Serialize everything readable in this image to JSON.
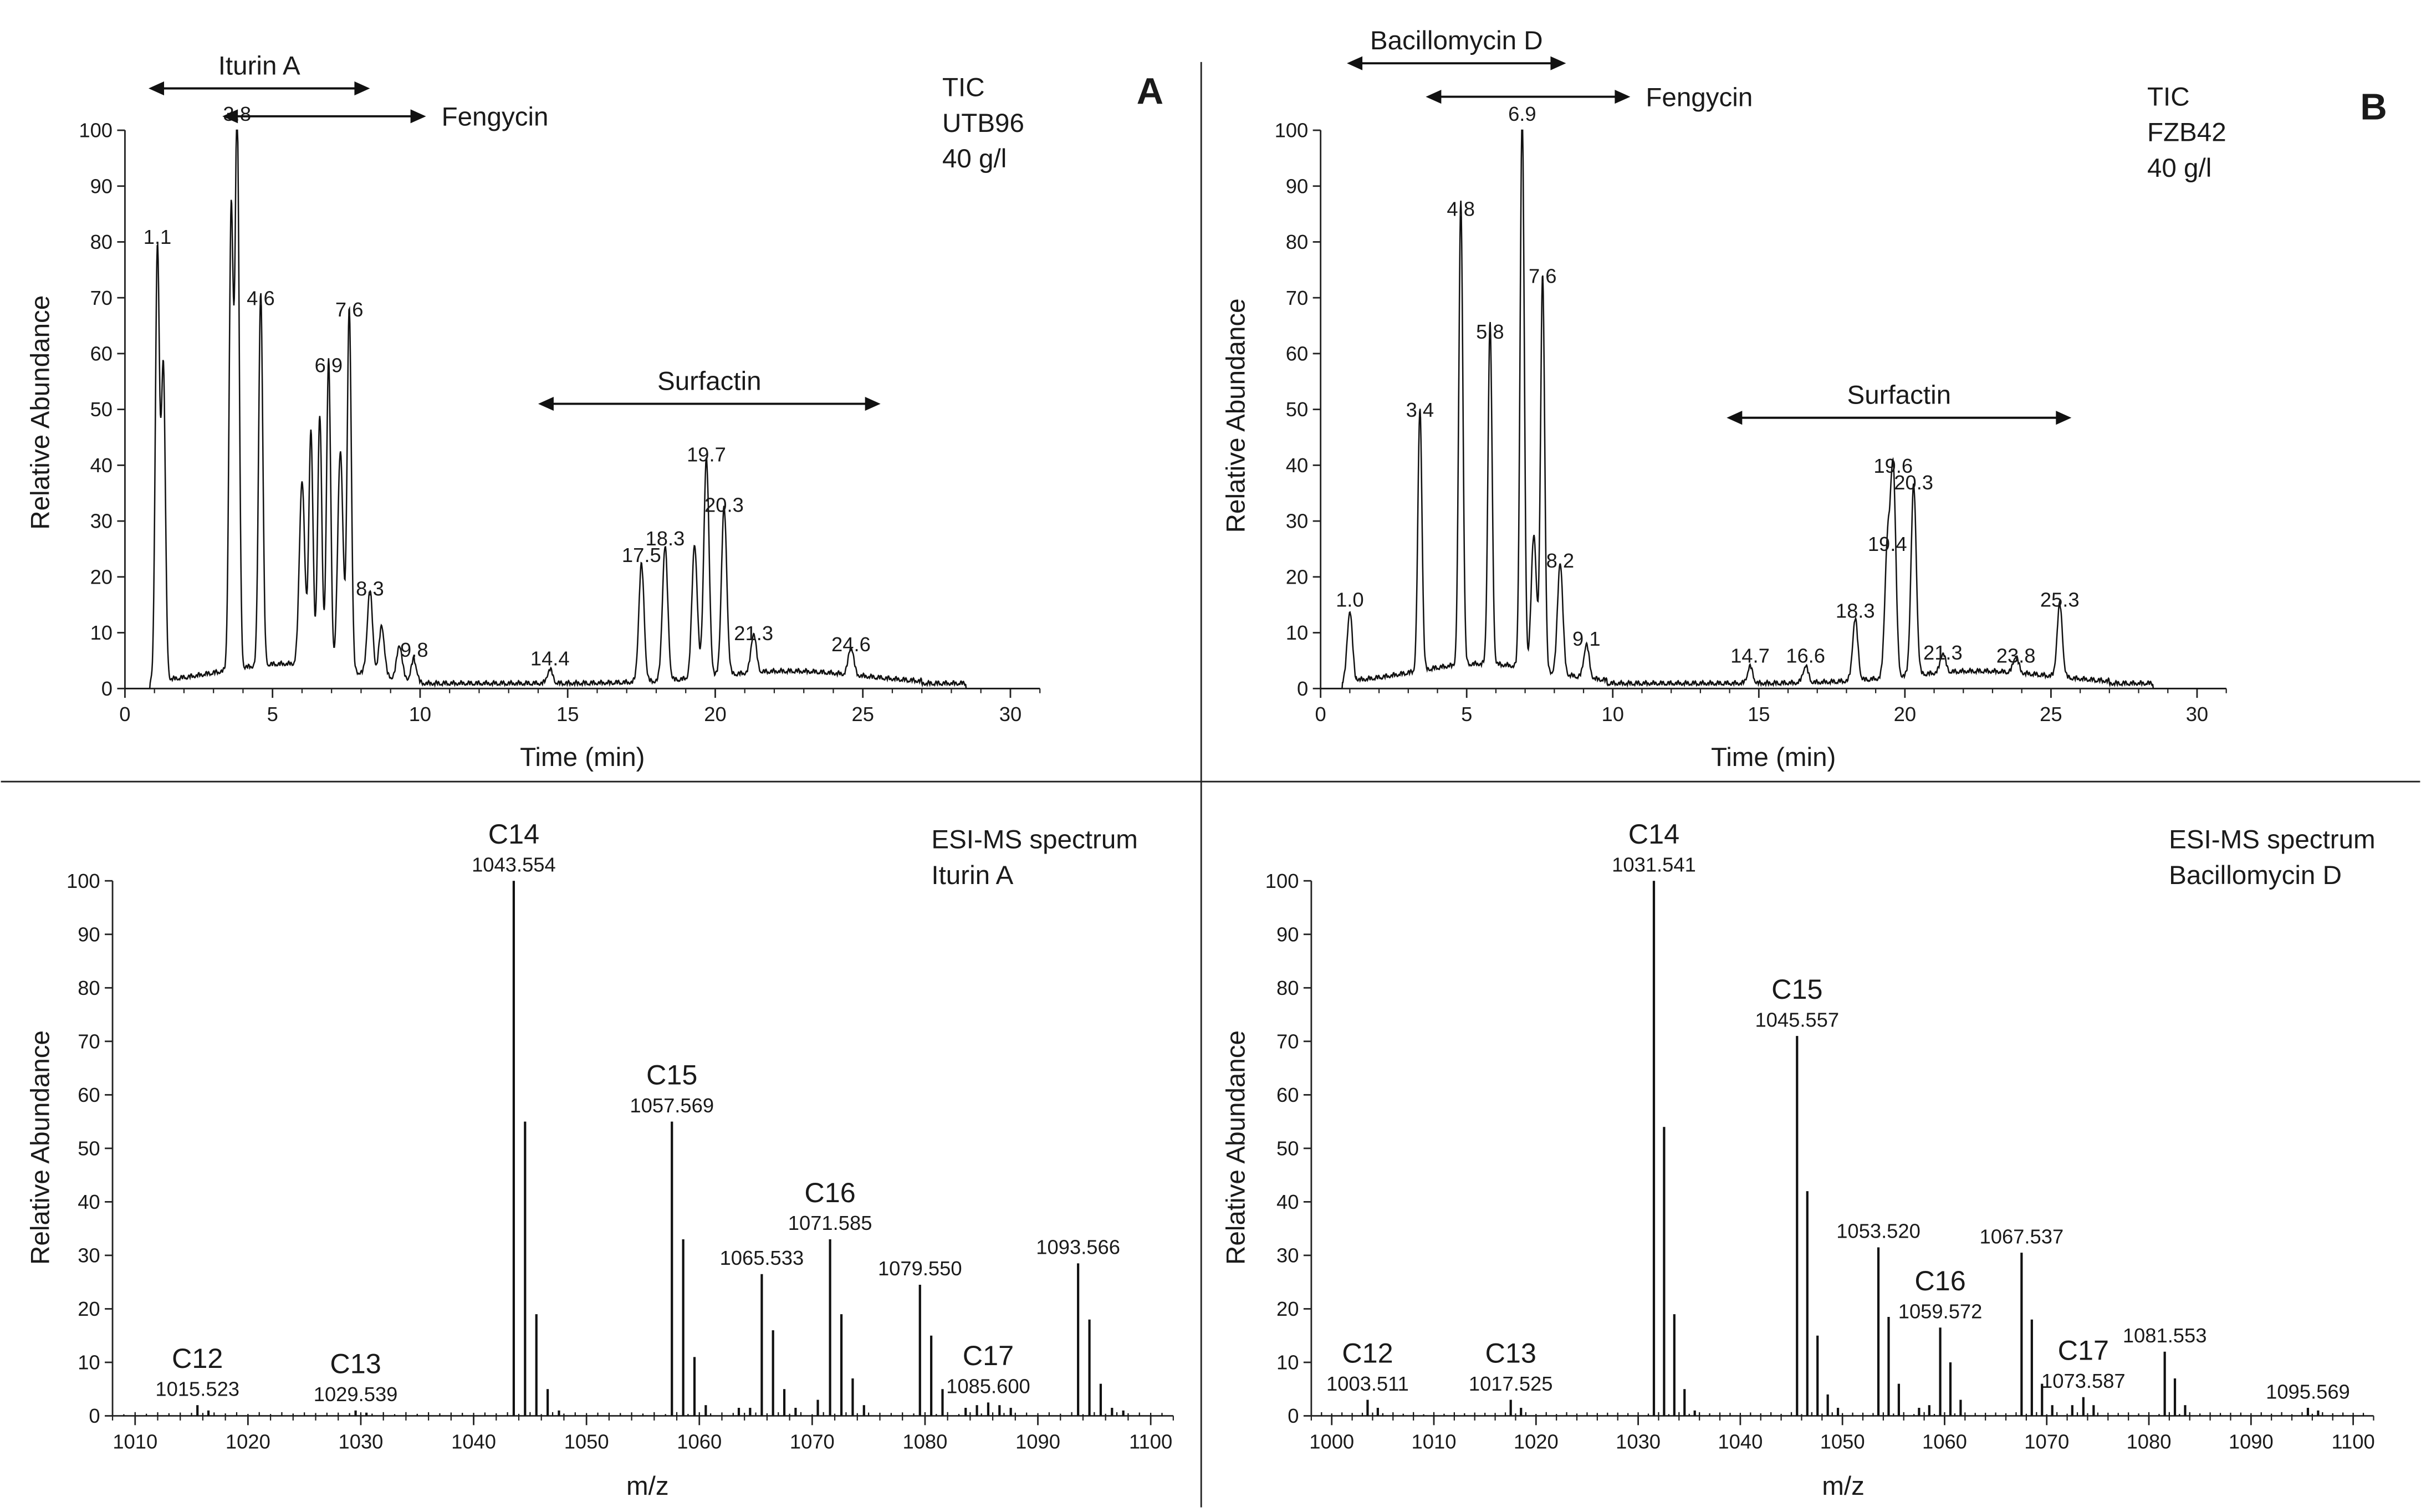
{
  "chart_data": [
    {
      "id": "A",
      "type": "line",
      "panel_letter": "A",
      "xlabel": "Time (min)",
      "ylabel": "Relative Abundance",
      "xlim": [
        0,
        31
      ],
      "ylim": [
        0,
        100
      ],
      "xticks": [
        0,
        5,
        10,
        15,
        20,
        25,
        30
      ],
      "yticks": [
        0,
        10,
        20,
        30,
        40,
        50,
        60,
        70,
        80,
        90,
        100
      ],
      "info_lines": [
        "TIC",
        "UTB96",
        "40 g/l"
      ],
      "ranges": [
        {
          "label": "Iturin A",
          "x1": 0.8,
          "x2": 8.3,
          "y": 107.5,
          "label_side": "above"
        },
        {
          "label": "Fengycin",
          "x1": 3.3,
          "x2": 10.2,
          "y": 102.5,
          "label_side": "right"
        },
        {
          "label": "Surfactin",
          "x1": 14.0,
          "x2": 25.6,
          "y": 51,
          "label_side": "above"
        }
      ],
      "peaks": [
        {
          "x": 1.1,
          "y": 78,
          "label": "1.1"
        },
        {
          "x": 1.3,
          "y": 56
        },
        {
          "x": 3.6,
          "y": 82
        },
        {
          "x": 3.8,
          "y": 100,
          "label": "3.8"
        },
        {
          "x": 4.6,
          "y": 67,
          "label": "4.6"
        },
        {
          "x": 6.0,
          "y": 33
        },
        {
          "x": 6.3,
          "y": 42
        },
        {
          "x": 6.6,
          "y": 45
        },
        {
          "x": 6.9,
          "y": 55,
          "label": "6.9"
        },
        {
          "x": 7.3,
          "y": 39
        },
        {
          "x": 7.6,
          "y": 65,
          "label": "7.6"
        },
        {
          "x": 8.3,
          "y": 15,
          "label": "8.3"
        },
        {
          "x": 8.7,
          "y": 9
        },
        {
          "x": 9.3,
          "y": 6
        },
        {
          "x": 9.8,
          "y": 4,
          "label": "9.8"
        },
        {
          "x": 14.4,
          "y": 2.5,
          "label": "14.4"
        },
        {
          "x": 17.5,
          "y": 21,
          "label": "17.5"
        },
        {
          "x": 18.3,
          "y": 24,
          "label": "18.3"
        },
        {
          "x": 19.3,
          "y": 24
        },
        {
          "x": 19.7,
          "y": 39,
          "label": "19.7"
        },
        {
          "x": 20.3,
          "y": 30,
          "label": "20.3"
        },
        {
          "x": 21.3,
          "y": 7,
          "label": "21.3"
        },
        {
          "x": 24.6,
          "y": 5,
          "label": "24.6"
        }
      ]
    },
    {
      "id": "B",
      "type": "line",
      "panel_letter": "B",
      "xlabel": "Time (min)",
      "ylabel": "Relative Abundance",
      "xlim": [
        0,
        31
      ],
      "ylim": [
        0,
        100
      ],
      "xticks": [
        0,
        5,
        10,
        15,
        20,
        25,
        30
      ],
      "yticks": [
        0,
        10,
        20,
        30,
        40,
        50,
        60,
        70,
        80,
        90,
        100
      ],
      "info_lines": [
        "TIC",
        "FZB42",
        "40 g/l"
      ],
      "ranges": [
        {
          "label": "Bacillomycin D",
          "x1": 0.9,
          "x2": 8.4,
          "y": 112,
          "label_side": "above"
        },
        {
          "label": "Fengycin",
          "x1": 3.6,
          "x2": 10.6,
          "y": 106,
          "label_side": "right"
        },
        {
          "label": "Surfactin",
          "x1": 13.9,
          "x2": 25.7,
          "y": 48.5,
          "label_side": "above"
        }
      ],
      "peaks": [
        {
          "x": 1.0,
          "y": 13,
          "label": "1.0"
        },
        {
          "x": 3.4,
          "y": 47,
          "label": "3.4"
        },
        {
          "x": 4.8,
          "y": 83,
          "label": "4.8"
        },
        {
          "x": 5.8,
          "y": 61,
          "label": "5.8"
        },
        {
          "x": 6.9,
          "y": 100,
          "label": "6.9"
        },
        {
          "x": 7.3,
          "y": 24
        },
        {
          "x": 7.6,
          "y": 71,
          "label": "7.6"
        },
        {
          "x": 8.2,
          "y": 20,
          "label": "8.2"
        },
        {
          "x": 9.1,
          "y": 6,
          "label": "9.1"
        },
        {
          "x": 14.7,
          "y": 3,
          "label": "14.7"
        },
        {
          "x": 16.6,
          "y": 3,
          "label": "16.6"
        },
        {
          "x": 18.3,
          "y": 11,
          "label": "18.3"
        },
        {
          "x": 19.4,
          "y": 23,
          "label": "19.4"
        },
        {
          "x": 19.6,
          "y": 37,
          "label": "19.6"
        },
        {
          "x": 20.3,
          "y": 34,
          "label": "20.3"
        },
        {
          "x": 21.3,
          "y": 3.5,
          "label": "21.3"
        },
        {
          "x": 23.8,
          "y": 3,
          "label": "23.8"
        },
        {
          "x": 25.3,
          "y": 13,
          "label": "25.3"
        }
      ]
    },
    {
      "id": "C",
      "type": "bar",
      "xlabel": "m/z",
      "ylabel": "Relative Abundance",
      "xlim": [
        1008,
        1102
      ],
      "ylim": [
        0,
        100
      ],
      "xticks": [
        1010,
        1020,
        1030,
        1040,
        1050,
        1060,
        1070,
        1080,
        1090,
        1100
      ],
      "yticks": [
        0,
        10,
        20,
        30,
        40,
        50,
        60,
        70,
        80,
        90,
        100
      ],
      "info_lines": [
        "ESI-MS spectrum",
        "Iturin A"
      ],
      "series": [
        {
          "x": 1015.523,
          "y": 2,
          "label": "1015.523",
          "group": "C12"
        },
        {
          "x": 1016.5,
          "y": 1
        },
        {
          "x": 1029.539,
          "y": 1,
          "label": "1029.539",
          "group": "C13"
        },
        {
          "x": 1030.5,
          "y": 0.6
        },
        {
          "x": 1043.554,
          "y": 100,
          "label": "1043.554",
          "group": "C14"
        },
        {
          "x": 1044.556,
          "y": 55
        },
        {
          "x": 1045.56,
          "y": 19
        },
        {
          "x": 1046.56,
          "y": 5
        },
        {
          "x": 1047.56,
          "y": 1
        },
        {
          "x": 1057.569,
          "y": 55,
          "label": "1057.569",
          "group": "C15"
        },
        {
          "x": 1058.57,
          "y": 33
        },
        {
          "x": 1059.57,
          "y": 11
        },
        {
          "x": 1060.57,
          "y": 2
        },
        {
          "x": 1063.5,
          "y": 1.5
        },
        {
          "x": 1064.5,
          "y": 1.5
        },
        {
          "x": 1065.533,
          "y": 26.5,
          "label": "1065.533"
        },
        {
          "x": 1066.53,
          "y": 16
        },
        {
          "x": 1067.53,
          "y": 5
        },
        {
          "x": 1068.53,
          "y": 1.5
        },
        {
          "x": 1070.5,
          "y": 3
        },
        {
          "x": 1071.585,
          "y": 33,
          "label": "1071.585",
          "group": "C16"
        },
        {
          "x": 1072.59,
          "y": 19
        },
        {
          "x": 1073.59,
          "y": 7
        },
        {
          "x": 1074.59,
          "y": 2
        },
        {
          "x": 1079.55,
          "y": 24.5,
          "label": "1079.550"
        },
        {
          "x": 1080.55,
          "y": 15
        },
        {
          "x": 1081.55,
          "y": 5
        },
        {
          "x": 1083.6,
          "y": 1.5
        },
        {
          "x": 1084.6,
          "y": 2
        },
        {
          "x": 1085.6,
          "y": 2.5,
          "label": "1085.600",
          "group": "C17"
        },
        {
          "x": 1086.6,
          "y": 2
        },
        {
          "x": 1087.6,
          "y": 1.5
        },
        {
          "x": 1093.566,
          "y": 28.5,
          "label": "1093.566"
        },
        {
          "x": 1094.57,
          "y": 18
        },
        {
          "x": 1095.57,
          "y": 6
        },
        {
          "x": 1096.57,
          "y": 1.5
        },
        {
          "x": 1097.57,
          "y": 1
        }
      ],
      "group_labels": [
        "C12",
        "C13",
        "C14",
        "C15",
        "C16",
        "C17"
      ]
    },
    {
      "id": "D",
      "type": "bar",
      "xlabel": "m/z",
      "ylabel": "Relative Abundance",
      "xlim": [
        998,
        1102
      ],
      "ylim": [
        0,
        100
      ],
      "xticks": [
        1000,
        1010,
        1020,
        1030,
        1040,
        1050,
        1060,
        1070,
        1080,
        1090,
        1100
      ],
      "yticks": [
        0,
        10,
        20,
        30,
        40,
        50,
        60,
        70,
        80,
        90,
        100
      ],
      "info_lines": [
        "ESI-MS spectrum",
        "Bacillomycin D"
      ],
      "series": [
        {
          "x": 1003.511,
          "y": 3,
          "label": "1003.511",
          "group": "C12"
        },
        {
          "x": 1004.51,
          "y": 1.5
        },
        {
          "x": 1017.525,
          "y": 3,
          "label": "1017.525",
          "group": "C13"
        },
        {
          "x": 1018.53,
          "y": 1.5
        },
        {
          "x": 1031.541,
          "y": 100,
          "label": "1031.541",
          "group": "C14"
        },
        {
          "x": 1032.54,
          "y": 54
        },
        {
          "x": 1033.54,
          "y": 19
        },
        {
          "x": 1034.54,
          "y": 5
        },
        {
          "x": 1035.54,
          "y": 1
        },
        {
          "x": 1045.557,
          "y": 71,
          "label": "1045.557",
          "group": "C15"
        },
        {
          "x": 1046.56,
          "y": 42
        },
        {
          "x": 1047.56,
          "y": 15
        },
        {
          "x": 1048.56,
          "y": 4
        },
        {
          "x": 1049.56,
          "y": 1.5
        },
        {
          "x": 1053.52,
          "y": 31.5,
          "label": "1053.520"
        },
        {
          "x": 1054.52,
          "y": 18.5
        },
        {
          "x": 1055.52,
          "y": 6
        },
        {
          "x": 1057.5,
          "y": 1.5
        },
        {
          "x": 1058.5,
          "y": 2
        },
        {
          "x": 1059.572,
          "y": 16.5,
          "label": "1059.572",
          "group": "C16"
        },
        {
          "x": 1060.57,
          "y": 10
        },
        {
          "x": 1061.57,
          "y": 3
        },
        {
          "x": 1067.537,
          "y": 30.5,
          "label": "1067.537"
        },
        {
          "x": 1068.54,
          "y": 18
        },
        {
          "x": 1069.54,
          "y": 6
        },
        {
          "x": 1070.54,
          "y": 2
        },
        {
          "x": 1072.5,
          "y": 2
        },
        {
          "x": 1073.587,
          "y": 3.5,
          "label": "1073.587",
          "group": "C17"
        },
        {
          "x": 1074.59,
          "y": 2
        },
        {
          "x": 1081.553,
          "y": 12,
          "label": "1081.553"
        },
        {
          "x": 1082.55,
          "y": 7
        },
        {
          "x": 1083.55,
          "y": 2
        },
        {
          "x": 1095.569,
          "y": 1.5,
          "label": "1095.569"
        },
        {
          "x": 1096.57,
          "y": 1
        }
      ],
      "group_labels": [
        "C12",
        "C13",
        "C14",
        "C15",
        "C16",
        "C17"
      ]
    }
  ]
}
